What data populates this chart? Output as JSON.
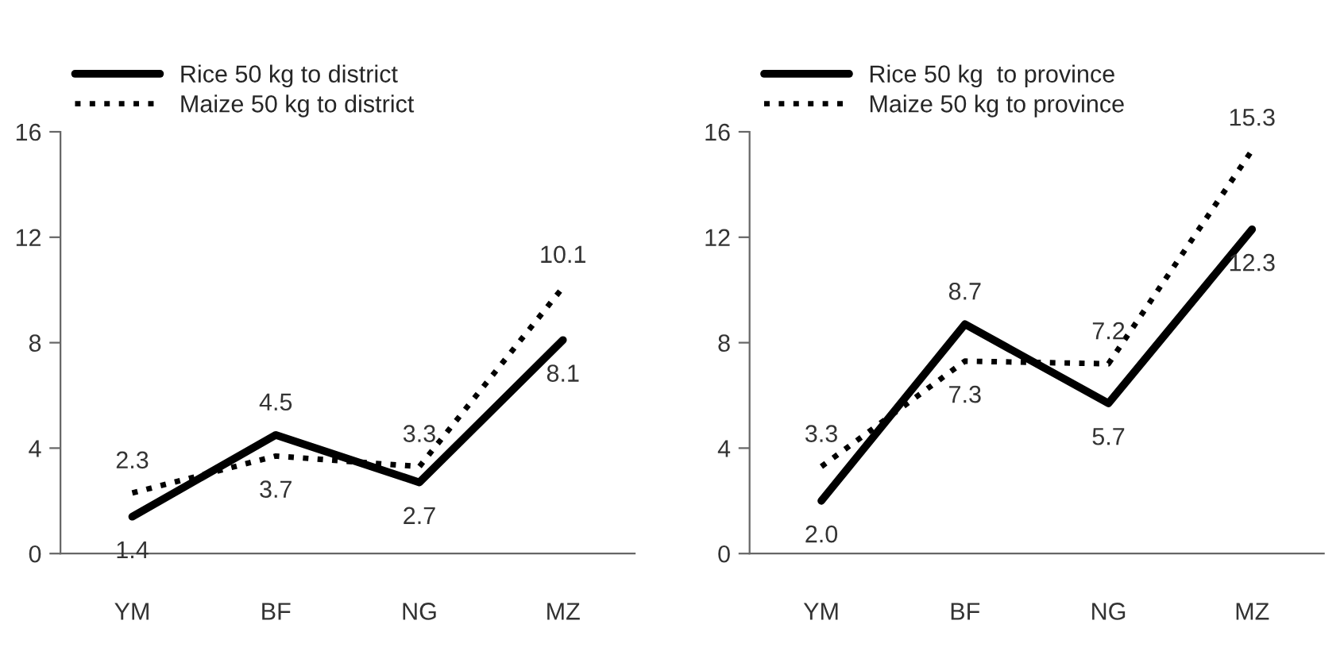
{
  "chart_data": [
    {
      "type": "line",
      "categories": [
        "YM",
        "BF",
        "NG",
        "MZ"
      ],
      "ylim": [
        0,
        16
      ],
      "yticks": [
        0,
        4,
        8,
        12,
        16
      ],
      "legend": "top",
      "data_labels": true,
      "grid": false,
      "series": [
        {
          "name": "Rice 50 kg to district",
          "color": "#000000",
          "line_style": "solid",
          "values": [
            1.4,
            4.5,
            2.7,
            8.1
          ]
        },
        {
          "name": "Maize 50 kg to district",
          "color": "#000000",
          "line_style": "dotted",
          "values": [
            2.3,
            3.7,
            3.3,
            10.1
          ]
        }
      ]
    },
    {
      "type": "line",
      "categories": [
        "YM",
        "BF",
        "NG",
        "MZ"
      ],
      "ylim": [
        0,
        16
      ],
      "yticks": [
        0,
        4,
        8,
        12,
        16
      ],
      "legend": "top",
      "data_labels": true,
      "grid": false,
      "series": [
        {
          "name": "Rice 50 kg  to province",
          "color": "#000000",
          "line_style": "solid",
          "values": [
            2.0,
            8.7,
            5.7,
            12.3
          ],
          "value_labels": [
            "2.0",
            "8.7",
            "5.7",
            "12.3"
          ]
        },
        {
          "name": "Maize 50 kg to province",
          "color": "#000000",
          "line_style": "dotted",
          "values": [
            3.3,
            7.3,
            7.2,
            15.3
          ]
        }
      ]
    }
  ]
}
